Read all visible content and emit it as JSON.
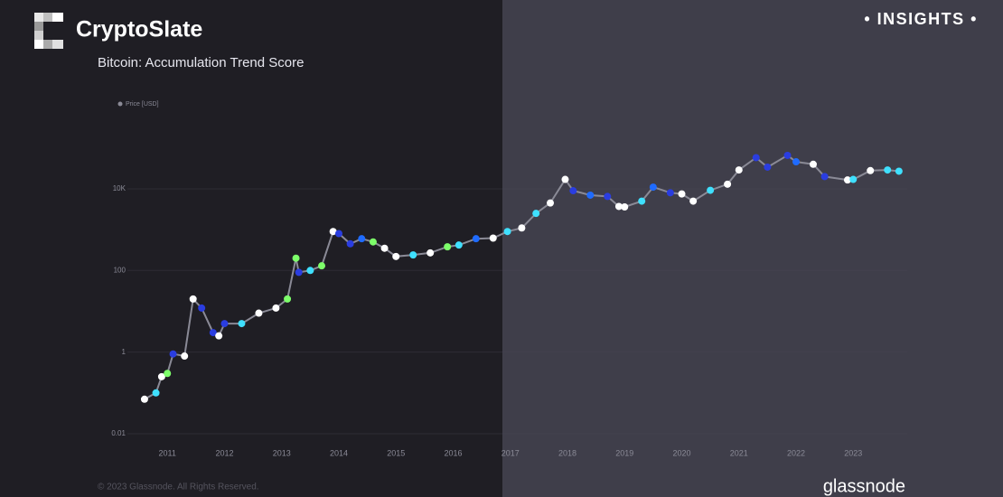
{
  "brand": "CryptoSlate",
  "badge": "• INSIGHTS •",
  "footer": "© 2023 Glassnode. All Rights Reserved.",
  "source": "glassnode",
  "chart_data": {
    "type": "scatter",
    "title": "Bitcoin: Accumulation Trend Score",
    "log_y": true,
    "grid": true,
    "xlim": [
      2010.3,
      2023.95
    ],
    "xticks": [
      2011,
      2012,
      2013,
      2014,
      2015,
      2016,
      2017,
      2018,
      2019,
      2020,
      2021,
      2022,
      2023
    ],
    "ylim": [
      0.006,
      200000
    ],
    "yticks": [
      0.01,
      1,
      100,
      {
        "value": 10000,
        "label": "10K"
      }
    ],
    "series": [
      {
        "name": "Price [USD]",
        "color": "#8a8a96",
        "x": [
          2010.6,
          2010.8,
          2010.9,
          2011.0,
          2011.1,
          2011.3,
          2011.45,
          2011.6,
          2011.8,
          2011.9,
          2012.0,
          2012.3,
          2012.6,
          2012.9,
          2013.1,
          2013.25,
          2013.3,
          2013.5,
          2013.7,
          2013.9,
          2014.0,
          2014.2,
          2014.4,
          2014.6,
          2014.8,
          2015.0,
          2015.3,
          2015.6,
          2015.9,
          2016.1,
          2016.4,
          2016.7,
          2016.95,
          2017.2,
          2017.45,
          2017.7,
          2017.96,
          2018.1,
          2018.4,
          2018.7,
          2018.9,
          2019.0,
          2019.3,
          2019.5,
          2019.8,
          2020.0,
          2020.2,
          2020.5,
          2020.8,
          2021.0,
          2021.3,
          2021.5,
          2021.85,
          2022.0,
          2022.3,
          2022.5,
          2022.9,
          2023.0,
          2023.3,
          2023.6,
          2023.8
        ],
        "values": [
          0.07,
          0.1,
          0.25,
          0.3,
          0.9,
          0.8,
          20,
          12,
          3,
          2.5,
          5,
          5,
          9,
          12,
          20,
          200,
          90,
          100,
          130,
          900,
          800,
          450,
          600,
          500,
          350,
          220,
          240,
          270,
          380,
          420,
          600,
          620,
          900,
          1100,
          2500,
          4500,
          17000,
          9000,
          7000,
          6500,
          3700,
          3600,
          5000,
          11000,
          8000,
          7500,
          5000,
          9200,
          13000,
          29000,
          58000,
          34000,
          66000,
          46000,
          40000,
          20000,
          16500,
          17000,
          28000,
          29000,
          27000
        ],
        "colors": [
          "#ffffff",
          "#3fe0ff",
          "#ffffff",
          "#7dff6a",
          "#2a3de0",
          "#ffffff",
          "#ffffff",
          "#2a3de0",
          "#2a3de0",
          "#ffffff",
          "#2a3de0",
          "#3fe0ff",
          "#ffffff",
          "#ffffff",
          "#7dff6a",
          "#7dff6a",
          "#2a3de0",
          "#3fe0ff",
          "#7dff6a",
          "#ffffff",
          "#2a3de0",
          "#2a3de0",
          "#1f6bff",
          "#7dff6a",
          "#ffffff",
          "#ffffff",
          "#3fe0ff",
          "#ffffff",
          "#7dff6a",
          "#3fe0ff",
          "#1f6bff",
          "#ffffff",
          "#3fe0ff",
          "#ffffff",
          "#3fe0ff",
          "#ffffff",
          "#ffffff",
          "#2a3de0",
          "#1f6bff",
          "#2a3de0",
          "#ffffff",
          "#ffffff",
          "#3fe0ff",
          "#1f6bff",
          "#2a3de0",
          "#ffffff",
          "#ffffff",
          "#3fe0ff",
          "#ffffff",
          "#ffffff",
          "#2a3de0",
          "#2a3de0",
          "#2a3de0",
          "#1f6bff",
          "#ffffff",
          "#2a3de0",
          "#ffffff",
          "#3fe0ff",
          "#ffffff",
          "#3fe0ff",
          "#3fe0ff"
        ]
      }
    ]
  }
}
